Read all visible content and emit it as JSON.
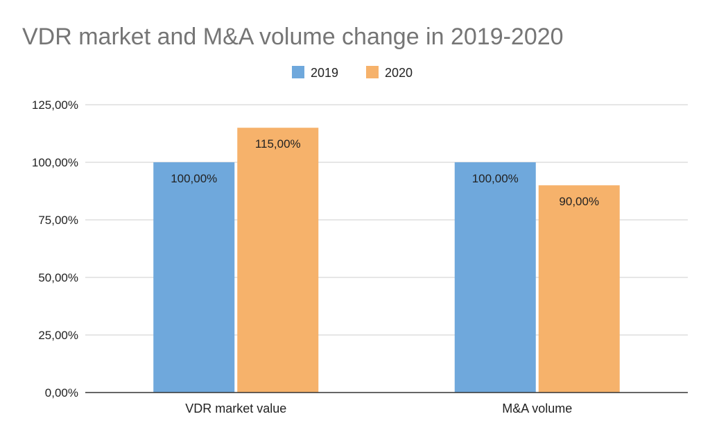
{
  "chart_data": {
    "type": "bar",
    "title": "VDR market and M&A volume change in 2019-2020",
    "categories": [
      "VDR market value",
      "M&A volume"
    ],
    "series": [
      {
        "name": "2019",
        "values": [
          100,
          100
        ],
        "labels": [
          "100,00%",
          "100,00%"
        ],
        "color": "#6fa8dc"
      },
      {
        "name": "2020",
        "values": [
          115,
          90
        ],
        "labels": [
          "115,00%",
          "90,00%"
        ],
        "color": "#f6b26b"
      }
    ],
    "ylim": [
      0,
      125
    ],
    "yticks": [
      {
        "value": 0,
        "label": "0,00%"
      },
      {
        "value": 25,
        "label": "25,00%"
      },
      {
        "value": 50,
        "label": "50,00%"
      },
      {
        "value": 75,
        "label": "75,00%"
      },
      {
        "value": 100,
        "label": "100,00%"
      },
      {
        "value": 125,
        "label": "125,00%"
      }
    ],
    "grid": true,
    "legend": "top-center"
  }
}
